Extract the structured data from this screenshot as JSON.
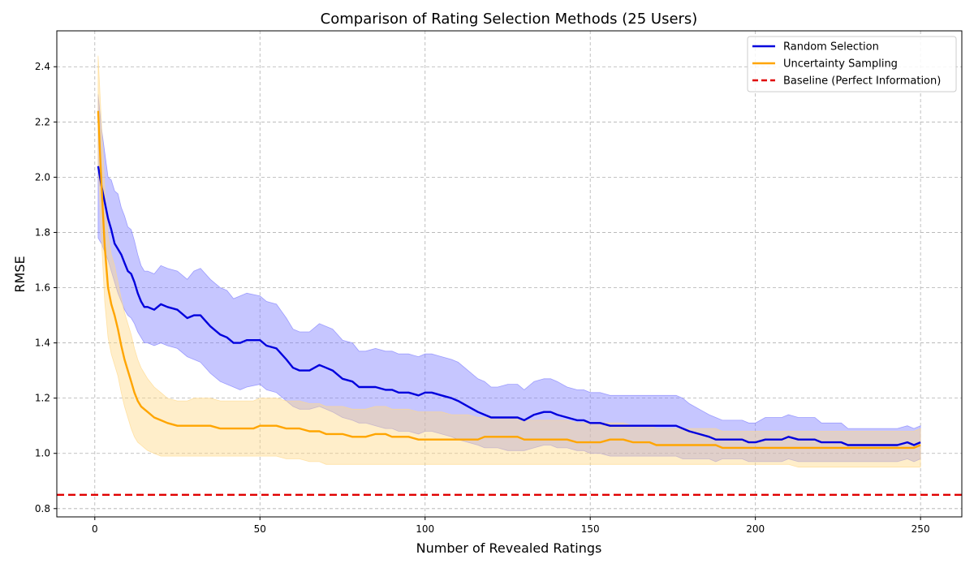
{
  "chart_data": {
    "type": "line",
    "title": "Comparison of Rating Selection Methods (25 Users)",
    "xlabel": "Number of Revealed Ratings",
    "ylabel": "RMSE",
    "xlim": [
      -11.5,
      262.5
    ],
    "ylim": [
      0.77,
      2.53
    ],
    "xticks": [
      0,
      50,
      100,
      150,
      200,
      250
    ],
    "yticks": [
      0.8,
      1.0,
      1.2,
      1.4,
      1.6,
      1.8,
      2.0,
      2.2,
      2.4
    ],
    "grid": true,
    "legend_position": "top-right",
    "series": [
      {
        "name": "Random Selection",
        "color": "#0000dd",
        "band_color": "#8080ff",
        "x": [
          1,
          2,
          3,
          4,
          5,
          6,
          7,
          8,
          9,
          10,
          11,
          12,
          13,
          14,
          15,
          16,
          18,
          20,
          22,
          25,
          28,
          30,
          32,
          35,
          38,
          40,
          42,
          44,
          46,
          50,
          52,
          55,
          58,
          60,
          62,
          65,
          68,
          70,
          72,
          75,
          78,
          80,
          82,
          85,
          88,
          90,
          92,
          95,
          98,
          100,
          102,
          105,
          108,
          110,
          113,
          116,
          118,
          120,
          122,
          125,
          128,
          130,
          133,
          136,
          138,
          140,
          143,
          146,
          148,
          150,
          153,
          156,
          158,
          160,
          163,
          166,
          168,
          170,
          173,
          176,
          178,
          180,
          183,
          186,
          188,
          190,
          193,
          196,
          198,
          200,
          203,
          206,
          208,
          210,
          213,
          216,
          218,
          220,
          223,
          226,
          228,
          230,
          233,
          236,
          238,
          240,
          243,
          246,
          248,
          250
        ],
        "values": [
          2.04,
          1.97,
          1.91,
          1.85,
          1.81,
          1.76,
          1.74,
          1.72,
          1.69,
          1.66,
          1.65,
          1.62,
          1.58,
          1.55,
          1.53,
          1.53,
          1.52,
          1.54,
          1.53,
          1.52,
          1.49,
          1.5,
          1.5,
          1.46,
          1.43,
          1.42,
          1.4,
          1.4,
          1.41,
          1.41,
          1.39,
          1.38,
          1.34,
          1.31,
          1.3,
          1.3,
          1.32,
          1.31,
          1.3,
          1.27,
          1.26,
          1.24,
          1.24,
          1.24,
          1.23,
          1.23,
          1.22,
          1.22,
          1.21,
          1.22,
          1.22,
          1.21,
          1.2,
          1.19,
          1.17,
          1.15,
          1.14,
          1.13,
          1.13,
          1.13,
          1.13,
          1.12,
          1.14,
          1.15,
          1.15,
          1.14,
          1.13,
          1.12,
          1.12,
          1.11,
          1.11,
          1.1,
          1.1,
          1.1,
          1.1,
          1.1,
          1.1,
          1.1,
          1.1,
          1.1,
          1.09,
          1.08,
          1.07,
          1.06,
          1.05,
          1.05,
          1.05,
          1.05,
          1.04,
          1.04,
          1.05,
          1.05,
          1.05,
          1.06,
          1.05,
          1.05,
          1.05,
          1.04,
          1.04,
          1.04,
          1.03,
          1.03,
          1.03,
          1.03,
          1.03,
          1.03,
          1.03,
          1.04,
          1.03,
          1.04
        ],
        "lower": [
          1.78,
          1.76,
          1.73,
          1.7,
          1.66,
          1.62,
          1.58,
          1.55,
          1.52,
          1.5,
          1.49,
          1.47,
          1.44,
          1.42,
          1.4,
          1.4,
          1.39,
          1.4,
          1.39,
          1.38,
          1.35,
          1.34,
          1.33,
          1.29,
          1.26,
          1.25,
          1.24,
          1.23,
          1.24,
          1.25,
          1.23,
          1.22,
          1.19,
          1.17,
          1.16,
          1.16,
          1.17,
          1.16,
          1.15,
          1.13,
          1.12,
          1.11,
          1.11,
          1.1,
          1.09,
          1.09,
          1.08,
          1.08,
          1.07,
          1.08,
          1.08,
          1.07,
          1.06,
          1.05,
          1.04,
          1.03,
          1.02,
          1.02,
          1.02,
          1.01,
          1.01,
          1.01,
          1.02,
          1.03,
          1.03,
          1.02,
          1.02,
          1.01,
          1.01,
          1.0,
          1.0,
          0.99,
          0.99,
          0.99,
          0.99,
          0.99,
          0.99,
          0.99,
          0.99,
          0.99,
          0.98,
          0.98,
          0.98,
          0.98,
          0.97,
          0.98,
          0.98,
          0.98,
          0.97,
          0.97,
          0.97,
          0.97,
          0.97,
          0.98,
          0.97,
          0.97,
          0.97,
          0.97,
          0.97,
          0.97,
          0.97,
          0.97,
          0.97,
          0.97,
          0.97,
          0.97,
          0.97,
          0.98,
          0.97,
          0.98
        ],
        "upper": [
          2.3,
          2.18,
          2.09,
          2.0,
          1.99,
          1.95,
          1.94,
          1.89,
          1.86,
          1.82,
          1.81,
          1.77,
          1.72,
          1.68,
          1.66,
          1.66,
          1.65,
          1.68,
          1.67,
          1.66,
          1.63,
          1.66,
          1.67,
          1.63,
          1.6,
          1.59,
          1.56,
          1.57,
          1.58,
          1.57,
          1.55,
          1.54,
          1.49,
          1.45,
          1.44,
          1.44,
          1.47,
          1.46,
          1.45,
          1.41,
          1.4,
          1.37,
          1.37,
          1.38,
          1.37,
          1.37,
          1.36,
          1.36,
          1.35,
          1.36,
          1.36,
          1.35,
          1.34,
          1.33,
          1.3,
          1.27,
          1.26,
          1.24,
          1.24,
          1.25,
          1.25,
          1.23,
          1.26,
          1.27,
          1.27,
          1.26,
          1.24,
          1.23,
          1.23,
          1.22,
          1.22,
          1.21,
          1.21,
          1.21,
          1.21,
          1.21,
          1.21,
          1.21,
          1.21,
          1.21,
          1.2,
          1.18,
          1.16,
          1.14,
          1.13,
          1.12,
          1.12,
          1.12,
          1.11,
          1.11,
          1.13,
          1.13,
          1.13,
          1.14,
          1.13,
          1.13,
          1.13,
          1.11,
          1.11,
          1.11,
          1.09,
          1.09,
          1.09,
          1.09,
          1.09,
          1.09,
          1.09,
          1.1,
          1.09,
          1.1
        ]
      },
      {
        "name": "Uncertainty Sampling",
        "color": "#ffa500",
        "band_color": "#ffd98a",
        "x": [
          1,
          2,
          3,
          4,
          5,
          6,
          7,
          8,
          9,
          10,
          11,
          12,
          13,
          14,
          15,
          16,
          18,
          20,
          22,
          25,
          28,
          30,
          32,
          35,
          38,
          40,
          42,
          45,
          48,
          50,
          52,
          55,
          58,
          60,
          62,
          65,
          68,
          70,
          72,
          75,
          78,
          80,
          82,
          85,
          88,
          90,
          92,
          95,
          98,
          100,
          102,
          105,
          108,
          110,
          113,
          116,
          118,
          120,
          122,
          125,
          128,
          130,
          133,
          136,
          138,
          140,
          143,
          146,
          148,
          150,
          153,
          156,
          158,
          160,
          163,
          166,
          168,
          170,
          173,
          176,
          178,
          180,
          183,
          186,
          188,
          190,
          193,
          196,
          198,
          200,
          203,
          206,
          208,
          210,
          213,
          216,
          218,
          220,
          223,
          226,
          228,
          230,
          233,
          236,
          238,
          240,
          243,
          246,
          248,
          250
        ],
        "values": [
          2.24,
          1.98,
          1.75,
          1.6,
          1.54,
          1.5,
          1.45,
          1.39,
          1.34,
          1.3,
          1.26,
          1.22,
          1.19,
          1.17,
          1.16,
          1.15,
          1.13,
          1.12,
          1.11,
          1.1,
          1.1,
          1.1,
          1.1,
          1.1,
          1.09,
          1.09,
          1.09,
          1.09,
          1.09,
          1.1,
          1.1,
          1.1,
          1.09,
          1.09,
          1.09,
          1.08,
          1.08,
          1.07,
          1.07,
          1.07,
          1.06,
          1.06,
          1.06,
          1.07,
          1.07,
          1.06,
          1.06,
          1.06,
          1.05,
          1.05,
          1.05,
          1.05,
          1.05,
          1.05,
          1.05,
          1.05,
          1.06,
          1.06,
          1.06,
          1.06,
          1.06,
          1.05,
          1.05,
          1.05,
          1.05,
          1.05,
          1.05,
          1.04,
          1.04,
          1.04,
          1.04,
          1.05,
          1.05,
          1.05,
          1.04,
          1.04,
          1.04,
          1.03,
          1.03,
          1.03,
          1.03,
          1.03,
          1.03,
          1.03,
          1.03,
          1.02,
          1.02,
          1.02,
          1.02,
          1.02,
          1.02,
          1.02,
          1.02,
          1.02,
          1.02,
          1.02,
          1.02,
          1.02,
          1.02,
          1.02,
          1.02,
          1.02,
          1.02,
          1.02,
          1.02,
          1.02,
          1.02,
          1.02,
          1.02,
          1.03
        ],
        "lower": [
          2.05,
          1.78,
          1.55,
          1.42,
          1.36,
          1.32,
          1.28,
          1.22,
          1.17,
          1.13,
          1.09,
          1.06,
          1.04,
          1.03,
          1.02,
          1.01,
          1.0,
          0.99,
          0.99,
          0.99,
          0.99,
          0.99,
          0.99,
          0.99,
          0.99,
          0.99,
          0.99,
          0.99,
          0.99,
          0.99,
          0.99,
          0.99,
          0.98,
          0.98,
          0.98,
          0.97,
          0.97,
          0.96,
          0.96,
          0.96,
          0.96,
          0.96,
          0.96,
          0.96,
          0.96,
          0.96,
          0.96,
          0.96,
          0.96,
          0.96,
          0.96,
          0.96,
          0.96,
          0.96,
          0.96,
          0.96,
          0.96,
          0.96,
          0.96,
          0.96,
          0.96,
          0.96,
          0.96,
          0.96,
          0.96,
          0.96,
          0.96,
          0.96,
          0.96,
          0.96,
          0.96,
          0.96,
          0.96,
          0.96,
          0.96,
          0.96,
          0.96,
          0.96,
          0.96,
          0.96,
          0.96,
          0.96,
          0.96,
          0.96,
          0.96,
          0.96,
          0.96,
          0.96,
          0.96,
          0.96,
          0.96,
          0.96,
          0.96,
          0.96,
          0.95,
          0.95,
          0.95,
          0.95,
          0.95,
          0.95,
          0.95,
          0.95,
          0.95,
          0.95,
          0.95,
          0.95,
          0.95,
          0.95,
          0.95,
          0.95
        ],
        "upper": [
          2.44,
          2.2,
          1.96,
          1.79,
          1.72,
          1.68,
          1.62,
          1.56,
          1.51,
          1.47,
          1.43,
          1.38,
          1.34,
          1.31,
          1.29,
          1.27,
          1.24,
          1.22,
          1.2,
          1.19,
          1.19,
          1.2,
          1.2,
          1.2,
          1.19,
          1.19,
          1.19,
          1.19,
          1.19,
          1.2,
          1.2,
          1.2,
          1.19,
          1.19,
          1.19,
          1.18,
          1.18,
          1.17,
          1.17,
          1.17,
          1.16,
          1.16,
          1.16,
          1.17,
          1.17,
          1.16,
          1.16,
          1.16,
          1.15,
          1.15,
          1.15,
          1.15,
          1.14,
          1.14,
          1.14,
          1.13,
          1.13,
          1.13,
          1.13,
          1.13,
          1.13,
          1.12,
          1.12,
          1.12,
          1.12,
          1.12,
          1.12,
          1.11,
          1.11,
          1.11,
          1.11,
          1.11,
          1.11,
          1.11,
          1.1,
          1.1,
          1.1,
          1.09,
          1.09,
          1.09,
          1.09,
          1.09,
          1.09,
          1.09,
          1.09,
          1.08,
          1.08,
          1.08,
          1.08,
          1.08,
          1.08,
          1.08,
          1.08,
          1.08,
          1.08,
          1.08,
          1.08,
          1.08,
          1.08,
          1.08,
          1.08,
          1.08,
          1.08,
          1.08,
          1.08,
          1.08,
          1.08,
          1.08,
          1.08,
          1.09
        ]
      }
    ],
    "baseline": {
      "name": "Baseline (Perfect Information)",
      "value": 0.85,
      "color": "#e00000",
      "style": "dashed"
    }
  }
}
